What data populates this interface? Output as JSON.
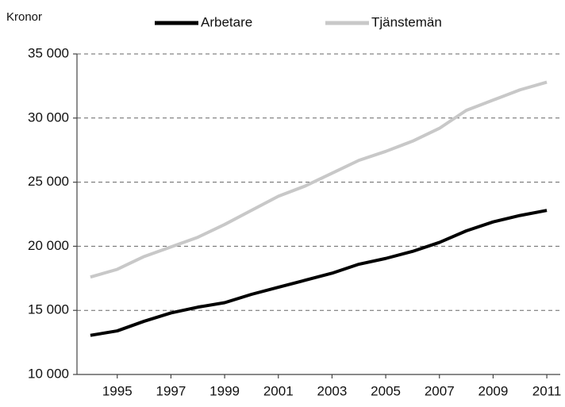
{
  "chart_data": {
    "type": "line",
    "y_label": "Kronor",
    "x": [
      1994,
      1995,
      1996,
      1997,
      1998,
      1999,
      2000,
      2001,
      2002,
      2003,
      2004,
      2005,
      2006,
      2007,
      2008,
      2009,
      2010,
      2011
    ],
    "series": [
      {
        "name": "Arbetare",
        "color": "#000000",
        "values": [
          13050,
          13400,
          14150,
          14800,
          15250,
          15600,
          16250,
          16800,
          17350,
          17900,
          18600,
          19050,
          19600,
          20300,
          21200,
          21900,
          22400,
          22800
        ]
      },
      {
        "name": "Tjänstemän",
        "color": "#c8c8c8",
        "values": [
          17600,
          18200,
          19200,
          19950,
          20700,
          21700,
          22800,
          23900,
          24700,
          25700,
          26700,
          27400,
          28200,
          29200,
          30600,
          31400,
          32200,
          32800
        ]
      }
    ],
    "xlim": [
      1993.5,
      2011.5
    ],
    "xticks": [
      1995,
      1997,
      1999,
      2001,
      2003,
      2005,
      2007,
      2009,
      2011
    ],
    "ylim": [
      10000,
      35000
    ],
    "yticks": [
      {
        "value": 10000,
        "label": "10 000"
      },
      {
        "value": 15000,
        "label": "15 000"
      },
      {
        "value": 20000,
        "label": "20 000"
      },
      {
        "value": 25000,
        "label": "25 000"
      },
      {
        "value": 30000,
        "label": "30 000"
      },
      {
        "value": 35000,
        "label": "35 000"
      }
    ],
    "grid": true,
    "legend": "top"
  }
}
